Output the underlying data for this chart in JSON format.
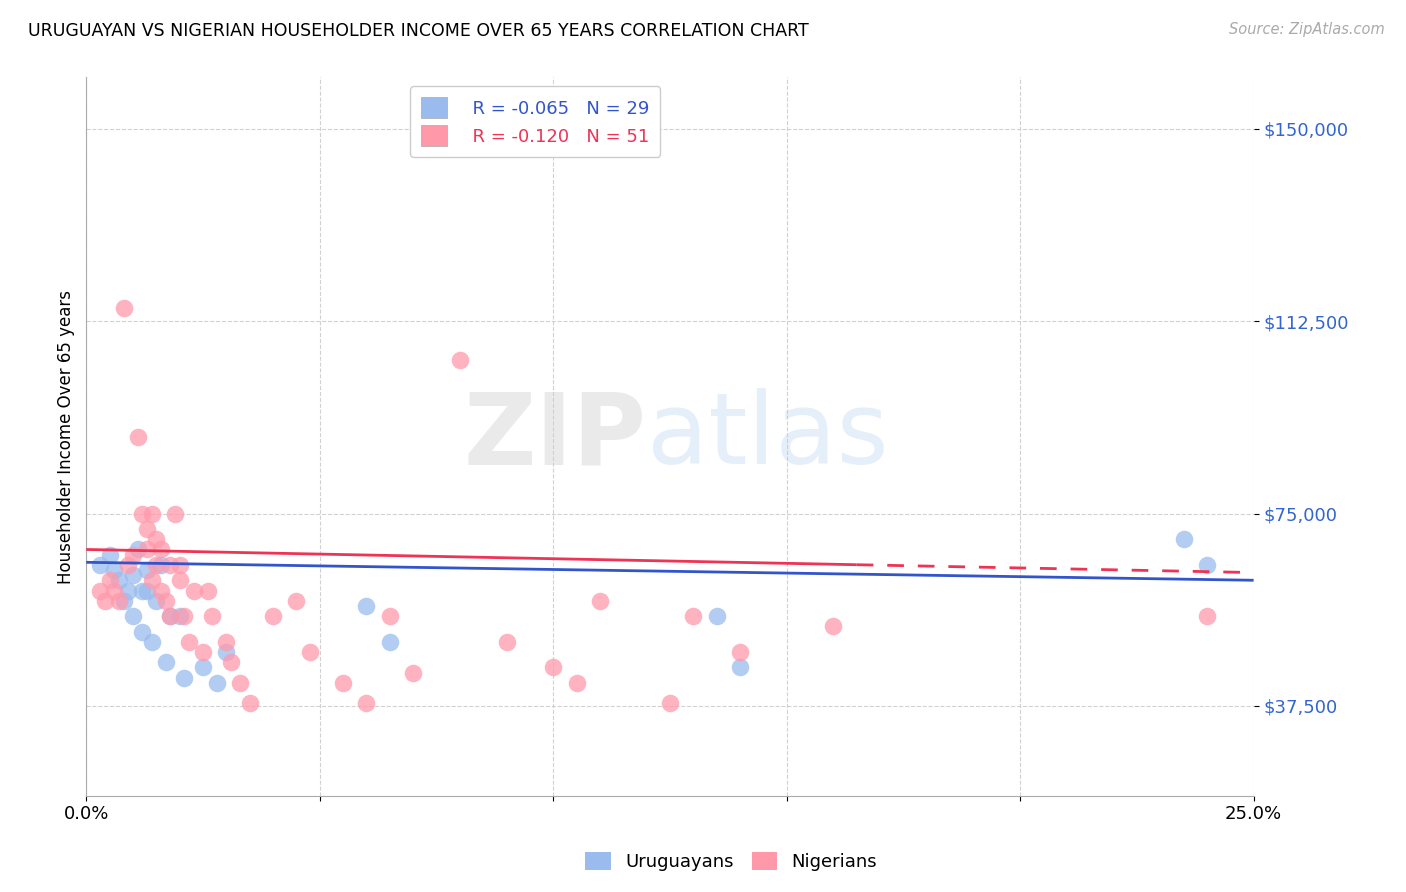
{
  "title": "URUGUAYAN VS NIGERIAN HOUSEHOLDER INCOME OVER 65 YEARS CORRELATION CHART",
  "source": "Source: ZipAtlas.com",
  "xlabel_uruguayans": "Uruguayans",
  "xlabel_nigerians": "Nigerians",
  "ylabel": "Householder Income Over 65 years",
  "legend_r_uruguayan": "R = -0.065",
  "legend_n_uruguayan": "N = 29",
  "legend_r_nigerian": "R = -0.120",
  "legend_n_nigerian": "N = 51",
  "xlim": [
    0.0,
    0.25
  ],
  "ylim": [
    20000,
    160000
  ],
  "yticks": [
    37500,
    75000,
    112500,
    150000
  ],
  "ytick_labels": [
    "$37,500",
    "$75,000",
    "$112,500",
    "$150,000"
  ],
  "xticks": [
    0.0,
    0.05,
    0.1,
    0.15,
    0.2,
    0.25
  ],
  "xtick_labels": [
    "0.0%",
    "",
    "",
    "",
    "",
    "25.0%"
  ],
  "color_uruguayan": "#99BBEE",
  "color_nigerian": "#FF99AA",
  "color_uruguayan_line": "#3355CC",
  "color_nigerian_line": "#EE3355",
  "background_color": "#ffffff",
  "uruguayan_x": [
    0.003,
    0.005,
    0.006,
    0.007,
    0.008,
    0.009,
    0.01,
    0.01,
    0.011,
    0.012,
    0.012,
    0.013,
    0.013,
    0.014,
    0.015,
    0.016,
    0.017,
    0.018,
    0.02,
    0.021,
    0.025,
    0.028,
    0.03,
    0.06,
    0.065,
    0.135,
    0.14,
    0.235,
    0.24
  ],
  "uruguayan_y": [
    65000,
    67000,
    64000,
    62000,
    58000,
    60000,
    55000,
    63000,
    68000,
    60000,
    52000,
    64000,
    60000,
    50000,
    58000,
    65000,
    46000,
    55000,
    55000,
    43000,
    45000,
    42000,
    48000,
    57000,
    50000,
    55000,
    45000,
    70000,
    65000
  ],
  "nigerian_x": [
    0.003,
    0.004,
    0.005,
    0.006,
    0.007,
    0.008,
    0.009,
    0.01,
    0.011,
    0.012,
    0.013,
    0.013,
    0.014,
    0.014,
    0.015,
    0.015,
    0.016,
    0.016,
    0.017,
    0.018,
    0.018,
    0.019,
    0.02,
    0.02,
    0.021,
    0.022,
    0.023,
    0.025,
    0.026,
    0.027,
    0.03,
    0.031,
    0.033,
    0.035,
    0.04,
    0.045,
    0.048,
    0.055,
    0.06,
    0.065,
    0.07,
    0.08,
    0.09,
    0.1,
    0.105,
    0.11,
    0.125,
    0.13,
    0.14,
    0.16,
    0.24
  ],
  "nigerian_y": [
    60000,
    58000,
    62000,
    60000,
    58000,
    115000,
    65000,
    67000,
    90000,
    75000,
    72000,
    68000,
    75000,
    62000,
    70000,
    65000,
    68000,
    60000,
    58000,
    65000,
    55000,
    75000,
    65000,
    62000,
    55000,
    50000,
    60000,
    48000,
    60000,
    55000,
    50000,
    46000,
    42000,
    38000,
    55000,
    58000,
    48000,
    42000,
    38000,
    55000,
    44000,
    105000,
    50000,
    45000,
    42000,
    58000,
    38000,
    55000,
    48000,
    53000,
    55000
  ],
  "trendline_uy_x0": 0.0,
  "trendline_uy_y0": 65500,
  "trendline_uy_x1": 0.25,
  "trendline_uy_y1": 62000,
  "trendline_ny_x0": 0.0,
  "trendline_ny_y0": 68000,
  "trendline_ny_x1": 0.25,
  "trendline_ny_y1": 63500,
  "trendline_ny_solid_end": 0.165
}
